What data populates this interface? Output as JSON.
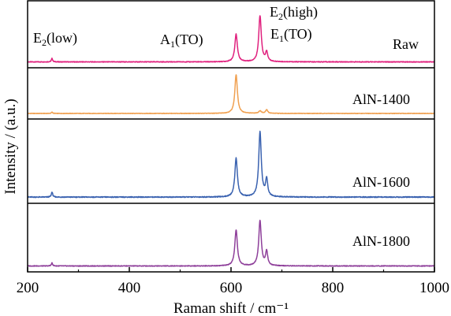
{
  "chart_data": {
    "type": "line",
    "xlabel": "Raman shift / cm⁻¹",
    "ylabel": "Intensity / (a.u.)",
    "xlim": [
      200,
      1000
    ],
    "xticks": [
      200,
      400,
      600,
      800,
      1000
    ],
    "grid": false,
    "legend": "none",
    "peak_annotations": [
      {
        "main": "E",
        "sub": "2",
        "rest": "(low)",
        "x": 248
      },
      {
        "main": "A",
        "sub": "1",
        "rest": "(TO)",
        "x": 610
      },
      {
        "main": "E",
        "sub": "2",
        "rest": "(high)",
        "x": 657
      },
      {
        "main": "E",
        "sub": "1",
        "rest": "(TO)",
        "x": 670
      }
    ],
    "series": [
      {
        "name": "Raw",
        "color": "#e0217e",
        "baseline": 0.02,
        "peaks": [
          {
            "x": 248,
            "height": 0.06,
            "width": 1.5
          },
          {
            "x": 610,
            "height": 0.48,
            "width": 3
          },
          {
            "x": 657,
            "height": 0.8,
            "width": 3
          },
          {
            "x": 670,
            "height": 0.16,
            "width": 2.5
          }
        ]
      },
      {
        "name": "AlN-1400",
        "color": "#f0a050",
        "baseline": 0.02,
        "peaks": [
          {
            "x": 248,
            "height": 0.03,
            "width": 1.5
          },
          {
            "x": 610,
            "height": 0.93,
            "width": 3
          },
          {
            "x": 657,
            "height": 0.06,
            "width": 3
          },
          {
            "x": 670,
            "height": 0.09,
            "width": 2.5
          }
        ]
      },
      {
        "name": "AlN-1600",
        "color": "#3a62b0",
        "baseline": 0.02,
        "peaks": [
          {
            "x": 248,
            "height": 0.07,
            "width": 1.5
          },
          {
            "x": 610,
            "height": 0.52,
            "width": 3
          },
          {
            "x": 657,
            "height": 0.87,
            "width": 3
          },
          {
            "x": 670,
            "height": 0.23,
            "width": 2.5
          }
        ]
      },
      {
        "name": "AlN-1800",
        "color": "#8e3f9a",
        "baseline": 0.02,
        "peaks": [
          {
            "x": 248,
            "height": 0.05,
            "width": 1.5
          },
          {
            "x": 610,
            "height": 0.61,
            "width": 3
          },
          {
            "x": 657,
            "height": 0.76,
            "width": 3
          },
          {
            "x": 670,
            "height": 0.24,
            "width": 2.5
          }
        ]
      }
    ]
  }
}
